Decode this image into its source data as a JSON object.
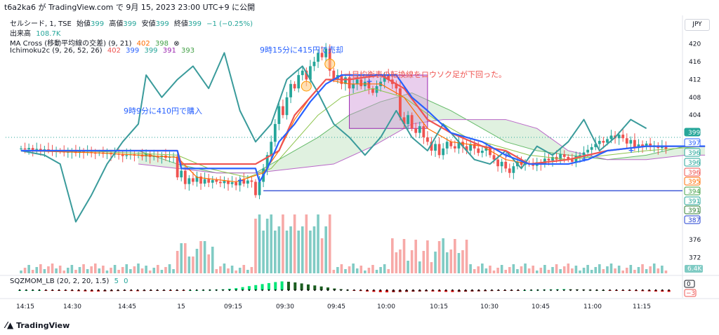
{
  "header": {
    "line": "t6a2ka6 が TradingView.com で 9月 15, 2023 23:00 UTC+9 に公開"
  },
  "symbol_row": {
    "name": "セルシード, 1, TSE",
    "open_label": "始値",
    "open": "399",
    "high_label": "高値",
    "high": "399",
    "low_label": "安値",
    "low": "399",
    "close_label": "終値",
    "close": "399",
    "change": "−1 (−0.25%)"
  },
  "volume_row": {
    "label": "出来高",
    "value": "108.7K"
  },
  "ma_row": {
    "label": "MA Cross (移動平均線の交差) (9, 21)",
    "v1": "402",
    "v2": "398"
  },
  "ichimoku_row": {
    "label": "Ichimoku2c (9, 26, 52, 26)",
    "v1": "402",
    "v2": "399",
    "v3": "399",
    "v4": "391",
    "v5": "393"
  },
  "sqz_row": {
    "label": "SQZMOM_LB (20, 2, 20, 1.5)",
    "v1": "5",
    "v2": "0"
  },
  "currency": "JPY",
  "footer": {
    "brand": "TradingView"
  },
  "colors": {
    "up": "#26a69a",
    "down": "#ef5350",
    "conversion": "#2962ff",
    "base": "#ef5350",
    "lagging": "#3a9b9b",
    "ma_fast": "#ff6d00",
    "ma_slow": "#43a047",
    "cloud": "#a5d6a7",
    "span_b": "#9c27b0",
    "box": "#ce93d8",
    "hline": "#1e3cd0"
  },
  "chart_data": {
    "type": "candlestick",
    "price_axis": {
      "min": 370,
      "max": 422,
      "ticks": [
        420,
        416,
        412,
        408,
        404,
        400,
        376,
        372
      ]
    },
    "time_axis": {
      "ticks": [
        "14:15",
        "14:30",
        "14:45",
        "15",
        "09:15",
        "09:30",
        "09:45",
        "10:00",
        "10:15",
        "10:30",
        "10:45",
        "11:00",
        "11:15"
      ]
    },
    "price_tags": [
      "399",
      "397",
      "396",
      "396",
      "396",
      "395",
      "394",
      "391",
      "391",
      "387"
    ],
    "horizontal_line": 387,
    "box": {
      "price_top": 413,
      "price_bottom": 401
    },
    "annotations": {
      "sell": "9時15分に415円で売却",
      "buy": "9時9分に410円で購入",
      "note": "一目均衡表の転換線をロウソク足が下回った。"
    },
    "volume_axis": {
      "label": "6.4K"
    },
    "sqz_axis": {
      "ticks": [
        "0",
        "−3"
      ]
    },
    "close": [
      396.5,
      396.3,
      396.6,
      396.2,
      396.4,
      396.0,
      396.3,
      396.1,
      395.8,
      396.0,
      395.9,
      395.6,
      395.7,
      395.9,
      395.5,
      395.8,
      395.6,
      395.7,
      395.5,
      395.4,
      395.6,
      395.3,
      395.5,
      395.2,
      395.3,
      395.1,
      394.8,
      395.0,
      395.2,
      394.9,
      395.1,
      394.7,
      395.3,
      394.6,
      394.8,
      394.5,
      394.9,
      394.4,
      394.6,
      394.7,
      390.0,
      391.5,
      388.5,
      389.8,
      389.0,
      390.2,
      388.6,
      389.6,
      388.8,
      389.4,
      389.0,
      388.7,
      389.2,
      388.5,
      388.9,
      388.2,
      389.5,
      388.6,
      389.3,
      389.0,
      386.0,
      389.0,
      392.0,
      395.0,
      398.0,
      402.0,
      406.0,
      404.0,
      408.0,
      411.0,
      410.0,
      413.0,
      414.0,
      412.0,
      415.0,
      416.0,
      418.0,
      417.0,
      419.0,
      414.0,
      412.0,
      413.0,
      411.0,
      412.5,
      410.0,
      411.0,
      412.0,
      410.5,
      411.5,
      410.0,
      409.0,
      410.5,
      411.5,
      413.0,
      412.0,
      411.0,
      410.0,
      403.5,
      402.0,
      404.0,
      401.0,
      400.0,
      401.5,
      399.0,
      398.0,
      396.0,
      397.5,
      395.0,
      396.5,
      398.0,
      397.0,
      396.5,
      398.0,
      397.0,
      396.0,
      397.5,
      396.5,
      395.5,
      396.0,
      396.8,
      395.0,
      394.0,
      392.5,
      393.5,
      392.0,
      391.0,
      392.5,
      393.5,
      392.8,
      393.2,
      393.0,
      392.6,
      393.4,
      393.0,
      394.2,
      393.8,
      394.6,
      394.0,
      395.2,
      394.6,
      394.0,
      393.5,
      394.8,
      395.0,
      395.6,
      396.2,
      396.8,
      397.5,
      398.2,
      397.8,
      398.6,
      399.4,
      398.8,
      399.6,
      398.8,
      397.6,
      398.4,
      396.6,
      397.4,
      396.8,
      397.6,
      396.8,
      397.2,
      396.6,
      397.0,
      396.4
    ],
    "conversion": [
      [
        0,
        396
      ],
      [
        40,
        396
      ],
      [
        41,
        392
      ],
      [
        60,
        392
      ],
      [
        61,
        389
      ],
      [
        63,
        392
      ],
      [
        66,
        398
      ],
      [
        70,
        402
      ],
      [
        74,
        407
      ],
      [
        78,
        411
      ],
      [
        82,
        413
      ],
      [
        96,
        413
      ],
      [
        100,
        408
      ],
      [
        104,
        405
      ],
      [
        110,
        400
      ],
      [
        118,
        398
      ],
      [
        124,
        395
      ],
      [
        130,
        393
      ],
      [
        140,
        393
      ],
      [
        145,
        394
      ],
      [
        150,
        396
      ],
      [
        160,
        397
      ],
      [
        175,
        397
      ]
    ],
    "base_line": [
      [
        0,
        396
      ],
      [
        40,
        396
      ],
      [
        41,
        393
      ],
      [
        60,
        393
      ],
      [
        66,
        396
      ],
      [
        70,
        404
      ],
      [
        74,
        408
      ],
      [
        78,
        412
      ],
      [
        84,
        412
      ],
      [
        92,
        413
      ],
      [
        98,
        410
      ],
      [
        104,
        403
      ],
      [
        110,
        400
      ],
      [
        118,
        397
      ],
      [
        124,
        396
      ],
      [
        130,
        393
      ],
      [
        140,
        394
      ],
      [
        150,
        396
      ],
      [
        160,
        397
      ],
      [
        175,
        397
      ]
    ],
    "ma_fast": [
      [
        0,
        396
      ],
      [
        20,
        395.5
      ],
      [
        40,
        394.5
      ],
      [
        45,
        390
      ],
      [
        55,
        389
      ],
      [
        62,
        391
      ],
      [
        66,
        396
      ],
      [
        70,
        403
      ],
      [
        74,
        408
      ],
      [
        78,
        412
      ],
      [
        84,
        411
      ],
      [
        92,
        411
      ],
      [
        98,
        408
      ],
      [
        104,
        401
      ],
      [
        110,
        398
      ],
      [
        118,
        397
      ],
      [
        124,
        394
      ],
      [
        130,
        393
      ],
      [
        140,
        394
      ],
      [
        150,
        396
      ],
      [
        160,
        397
      ],
      [
        175,
        397
      ]
    ],
    "ma_slow": [
      [
        0,
        396
      ],
      [
        20,
        395.8
      ],
      [
        40,
        395
      ],
      [
        48,
        392
      ],
      [
        58,
        390
      ],
      [
        64,
        392
      ],
      [
        70,
        398
      ],
      [
        76,
        404
      ],
      [
        82,
        408
      ],
      [
        90,
        410
      ],
      [
        98,
        408
      ],
      [
        106,
        403
      ],
      [
        114,
        399
      ],
      [
        122,
        397
      ],
      [
        130,
        395
      ],
      [
        140,
        394
      ],
      [
        150,
        395
      ],
      [
        160,
        396
      ],
      [
        175,
        397
      ]
    ],
    "lagging": [
      [
        0,
        396
      ],
      [
        6,
        395
      ],
      [
        10,
        393
      ],
      [
        14,
        380
      ],
      [
        18,
        386
      ],
      [
        22,
        393
      ],
      [
        26,
        398
      ],
      [
        30,
        402
      ],
      [
        32,
        413
      ],
      [
        36,
        408
      ],
      [
        40,
        412
      ],
      [
        44,
        415
      ],
      [
        48,
        410
      ],
      [
        52,
        418
      ],
      [
        56,
        405
      ],
      [
        60,
        398
      ],
      [
        64,
        402
      ],
      [
        68,
        412
      ],
      [
        72,
        415
      ],
      [
        76,
        409
      ],
      [
        80,
        402
      ],
      [
        84,
        399
      ],
      [
        88,
        395
      ],
      [
        92,
        399
      ],
      [
        96,
        405
      ],
      [
        100,
        399
      ],
      [
        104,
        396
      ],
      [
        108,
        402
      ],
      [
        112,
        398
      ],
      [
        116,
        394
      ],
      [
        120,
        393
      ],
      [
        124,
        396
      ],
      [
        128,
        392
      ],
      [
        132,
        397
      ],
      [
        136,
        395
      ],
      [
        140,
        398
      ],
      [
        144,
        403
      ],
      [
        148,
        396
      ],
      [
        152,
        399
      ],
      [
        156,
        403
      ],
      [
        160,
        401
      ]
    ],
    "span_a": [
      [
        30,
        396
      ],
      [
        40,
        393
      ],
      [
        50,
        391
      ],
      [
        60,
        391
      ],
      [
        68,
        395
      ],
      [
        76,
        399
      ],
      [
        84,
        404
      ],
      [
        92,
        407
      ],
      [
        100,
        409
      ],
      [
        110,
        405
      ],
      [
        116,
        402
      ],
      [
        124,
        398
      ],
      [
        132,
        396
      ],
      [
        140,
        395
      ],
      [
        150,
        394
      ],
      [
        160,
        395
      ],
      [
        170,
        397
      ],
      [
        175,
        397
      ]
    ],
    "span_b": [
      [
        30,
        393
      ],
      [
        40,
        392
      ],
      [
        50,
        391
      ],
      [
        60,
        391
      ],
      [
        70,
        392
      ],
      [
        80,
        393
      ],
      [
        90,
        397
      ],
      [
        100,
        402
      ],
      [
        108,
        403
      ],
      [
        116,
        403
      ],
      [
        124,
        403
      ],
      [
        132,
        401
      ],
      [
        140,
        396
      ],
      [
        150,
        394
      ],
      [
        160,
        394
      ],
      [
        170,
        395
      ],
      [
        175,
        395
      ]
    ],
    "sqz": [
      0,
      0,
      0,
      0,
      -0.1,
      -0.2,
      -0.3,
      -0.4,
      -0.5,
      -0.6,
      -0.7,
      -0.8,
      -0.8,
      -0.7,
      -0.6,
      -0.5,
      -0.4,
      -0.5,
      -0.6,
      -0.5,
      -0.4,
      -0.3,
      -0.2,
      -0.2,
      -0.1,
      -0.1,
      0,
      0,
      0.1,
      0.2,
      0.3,
      0.5,
      0.8,
      1.2,
      1.8,
      2.4,
      3.0,
      3.6,
      4.2,
      4.8,
      5.2,
      5.0,
      4.6,
      4.0,
      3.4,
      2.8,
      2.2,
      1.6,
      1.0,
      0.6,
      0.2,
      -0.2,
      -0.5,
      -0.8,
      -1.0,
      -1.2,
      -1.3,
      -1.2,
      -1.1,
      -1.0,
      -0.9,
      -0.8,
      -0.7,
      -0.8,
      -0.9,
      -1.0,
      -1.1,
      -1.0,
      -0.9,
      -0.8,
      -0.7,
      -0.6,
      -0.5,
      -0.4,
      -0.3,
      -0.2,
      -0.1,
      0,
      0.1,
      0.2,
      0.3,
      0.4,
      0.5,
      0.6,
      0.5,
      0.4,
      0.3,
      0.2,
      0.1,
      0,
      -0.1,
      -0.2,
      -0.3,
      -0.4,
      -0.5,
      -0.6,
      -0.7,
      -0.8,
      -0.9,
      -1.0
    ]
  }
}
